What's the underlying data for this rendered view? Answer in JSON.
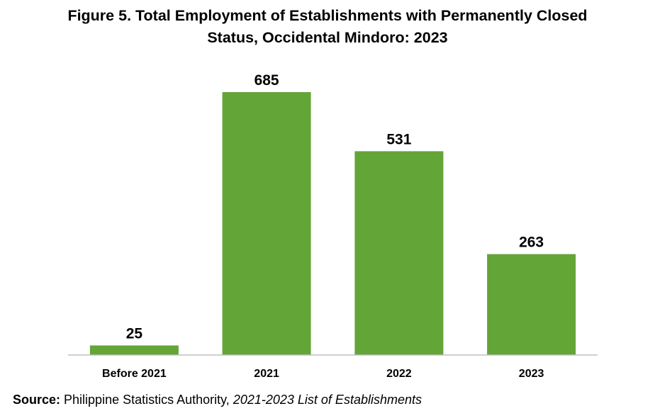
{
  "title": {
    "line1": "Figure 5. Total Employment of Establishments with Permanently Closed",
    "line2": "Status, Occidental Mindoro: 2023"
  },
  "source": {
    "label": "Source:",
    "text": " Philippine Statistics Authority, ",
    "publication": "2021-2023 List of Establishments"
  },
  "colors": {
    "bar": "#63a537",
    "axis": "#bfbfbf"
  },
  "chart_data": {
    "type": "bar",
    "categories": [
      "Before 2021",
      "2021",
      "2022",
      "2023"
    ],
    "values": [
      25,
      685,
      531,
      263
    ],
    "title": "Figure 5. Total Employment of Establishments with Permanently Closed Status, Occidental Mindoro: 2023",
    "xlabel": "",
    "ylabel": "",
    "ylim": [
      0,
      700
    ],
    "grid": false,
    "legend": "none",
    "data_labels": true
  }
}
